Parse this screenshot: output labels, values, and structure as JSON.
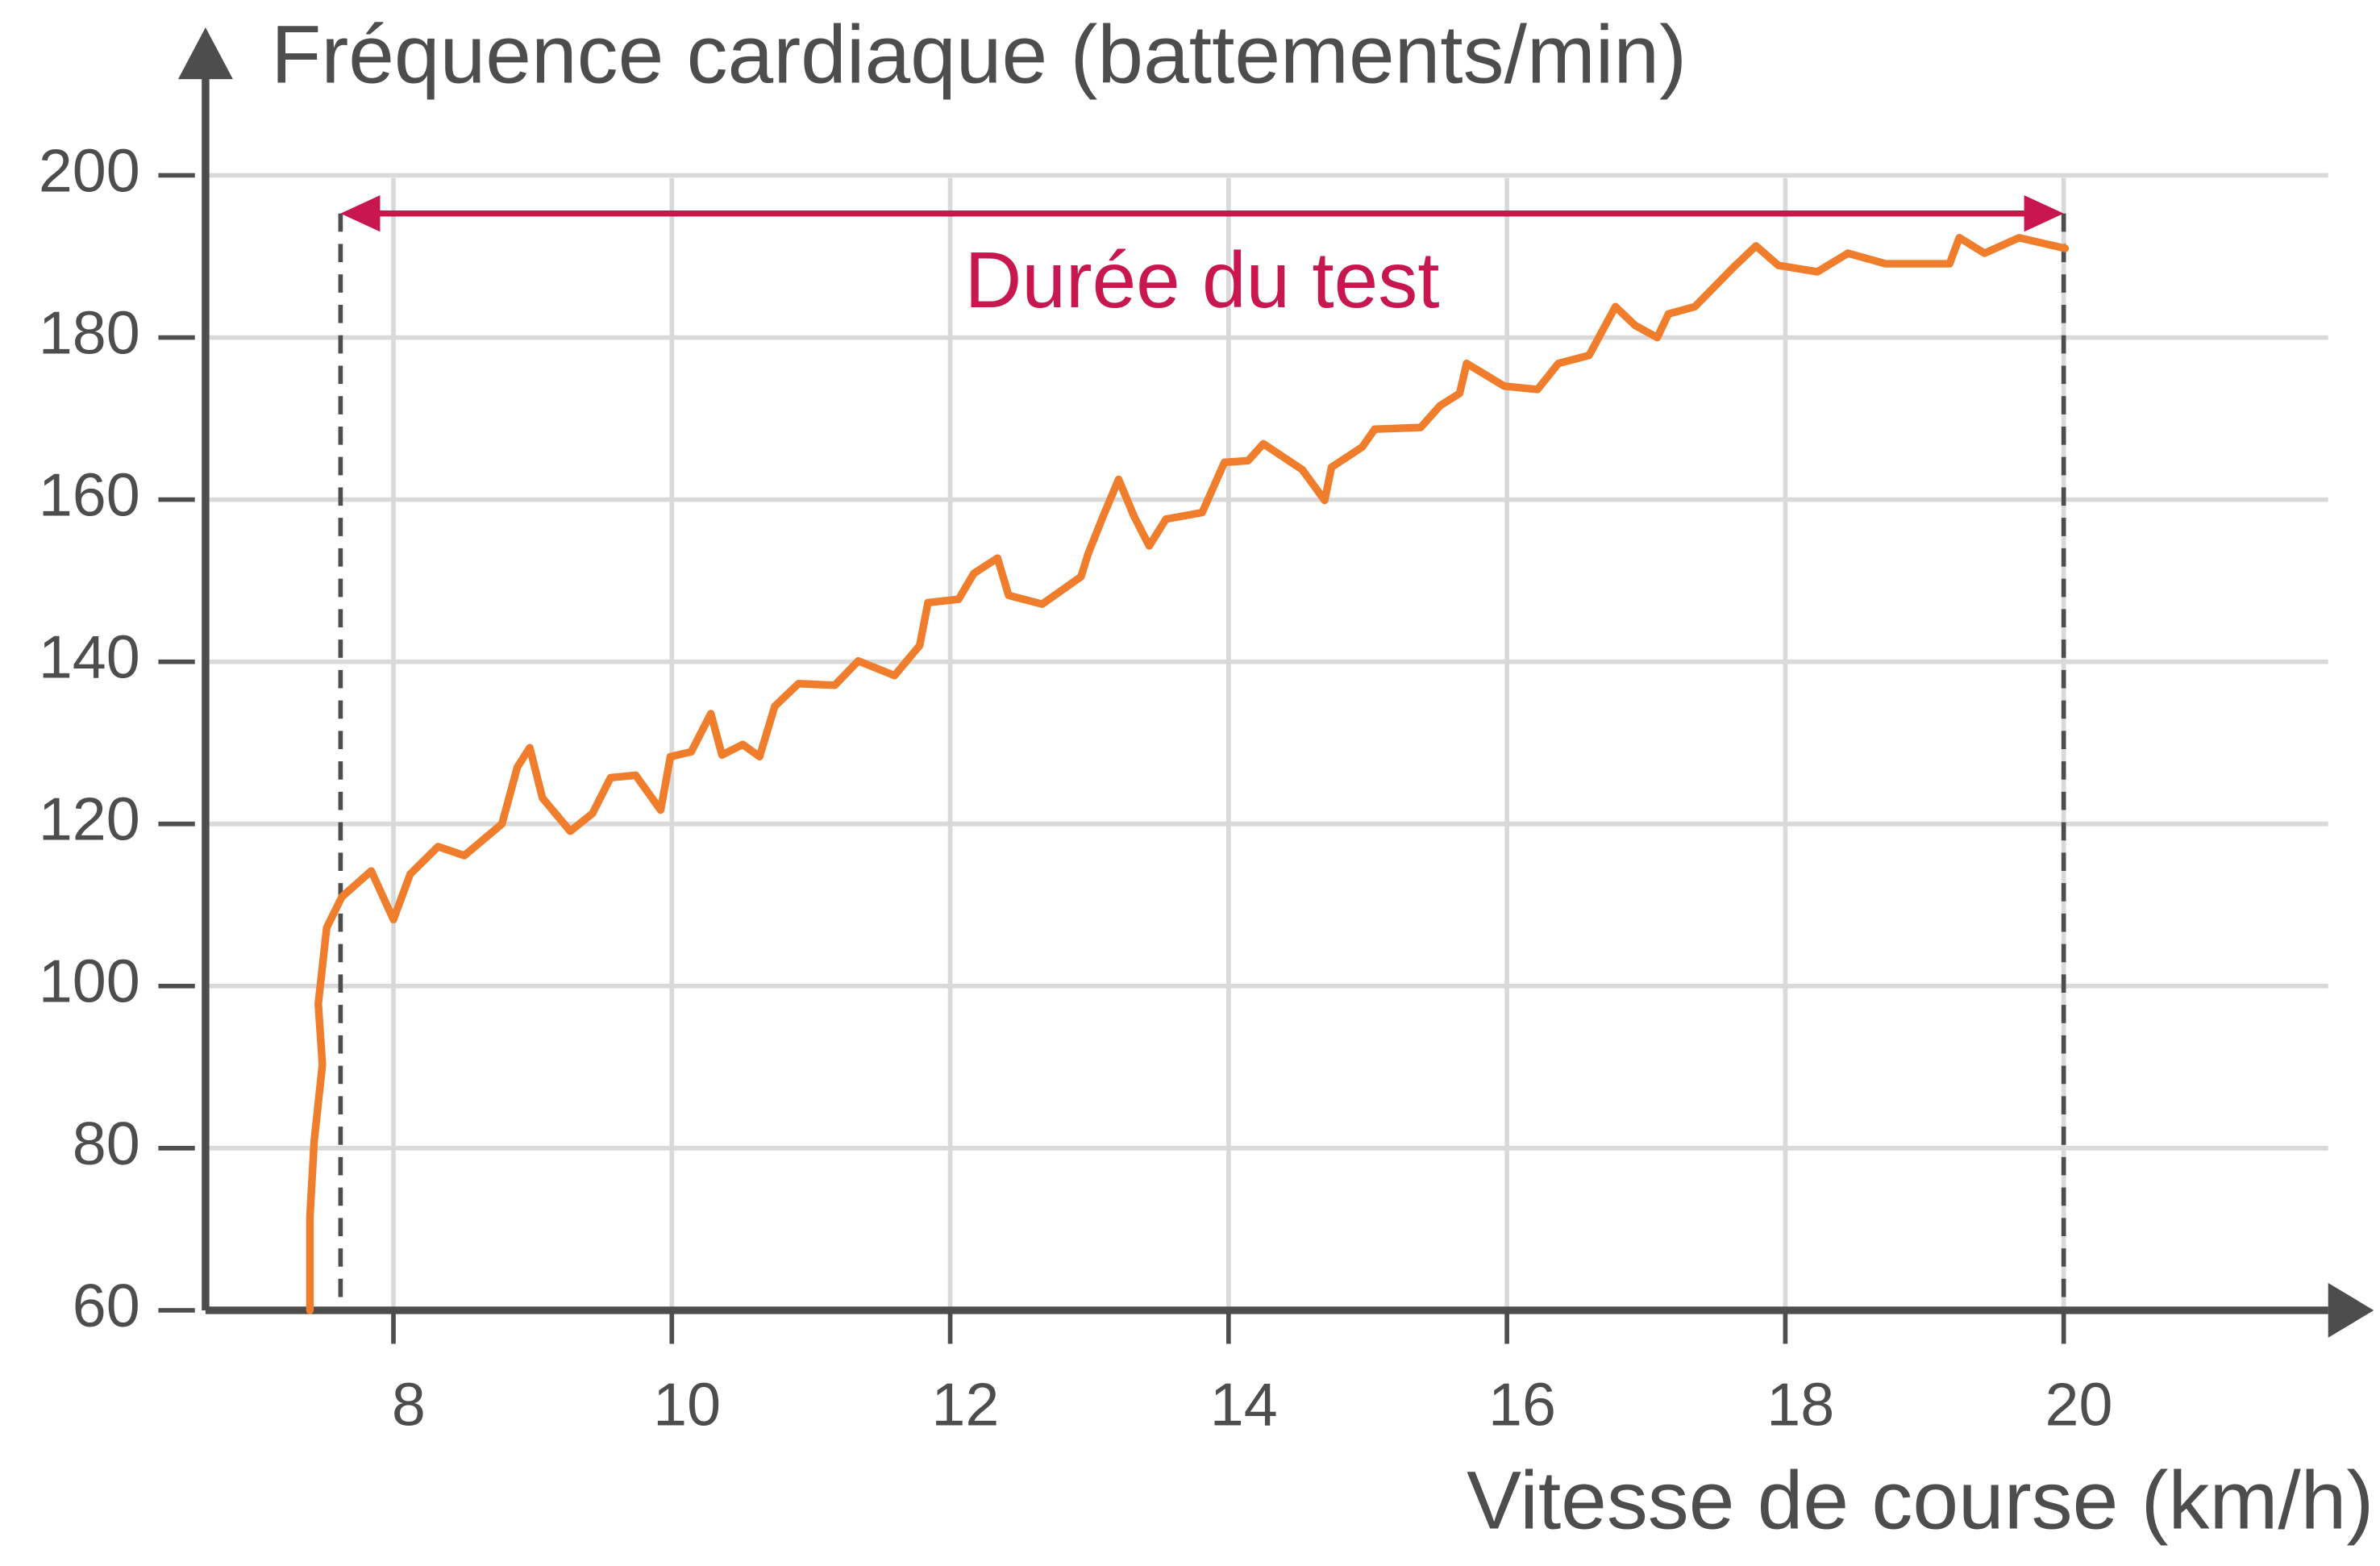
{
  "chart_data": {
    "type": "line",
    "ylabel": "Fréquence cardiaque (battements/min)",
    "xlabel": "Vitesse de course (km/h)",
    "x": [
      7.4,
      7.4,
      7.43,
      7.49,
      7.46,
      7.52,
      7.63,
      7.84,
      8.0,
      8.12,
      8.32,
      8.51,
      8.78,
      8.89,
      8.98,
      9.07,
      9.27,
      9.43,
      9.56,
      9.74,
      9.92,
      9.99,
      10.14,
      10.28,
      10.36,
      10.51,
      10.63,
      10.74,
      10.91,
      11.17,
      11.34,
      11.6,
      11.78,
      11.84,
      12.06,
      12.17,
      12.34,
      12.42,
      12.66,
      12.94,
      12.99,
      13.1,
      13.21,
      13.32,
      13.43,
      13.55,
      13.81,
      13.97,
      14.14,
      14.25,
      14.53,
      14.69,
      14.74,
      14.96,
      15.05,
      15.38,
      15.52,
      15.66,
      15.71,
      15.98,
      16.22,
      16.37,
      16.59,
      16.78,
      16.92,
      17.08,
      17.16,
      17.35,
      17.63,
      17.79,
      17.95,
      18.23,
      18.45,
      18.72,
      19.18,
      19.25,
      19.43,
      19.68,
      20.01
    ],
    "series": [
      {
        "color": "#ef7d2b",
        "values": [
          60,
          71.5,
          80.9,
          90.3,
          97.8,
          107.2,
          111,
          114.2,
          108.2,
          113.8,
          117.2,
          116.1,
          120,
          127,
          129.4,
          123.2,
          119.1,
          121.3,
          125.7,
          126,
          121.7,
          128.3,
          128.9,
          133.6,
          128.5,
          129.8,
          128.3,
          134.5,
          137.3,
          137.1,
          140.1,
          138.3,
          142,
          147.3,
          147.7,
          150.9,
          152.8,
          148.2,
          147.1,
          150.5,
          153.3,
          158,
          162.5,
          158,
          154.3,
          157.6,
          158.4,
          164.6,
          164.8,
          166.9,
          163.7,
          159.9,
          164,
          166.5,
          168.7,
          168.9,
          171.6,
          173.1,
          176.8,
          174,
          173.6,
          176.8,
          177.8,
          183.8,
          181.5,
          180,
          182.9,
          183.8,
          188.7,
          191.3,
          188.9,
          188.1,
          190.4,
          189.1,
          189.1,
          192.3,
          190.4,
          192.3,
          191
        ]
      }
    ],
    "annotation": {
      "text": "Durée du test",
      "color": "#c8174f",
      "x_start": 7.62,
      "x_end": 20,
      "y": 195.3
    },
    "xlim": [
      6.65,
      21.9
    ],
    "ylim": [
      60,
      216
    ],
    "xticks": [
      8,
      10,
      12,
      14,
      16,
      18,
      20
    ],
    "yticks": [
      60,
      80,
      100,
      120,
      140,
      160,
      180,
      200
    ],
    "grid": true
  }
}
